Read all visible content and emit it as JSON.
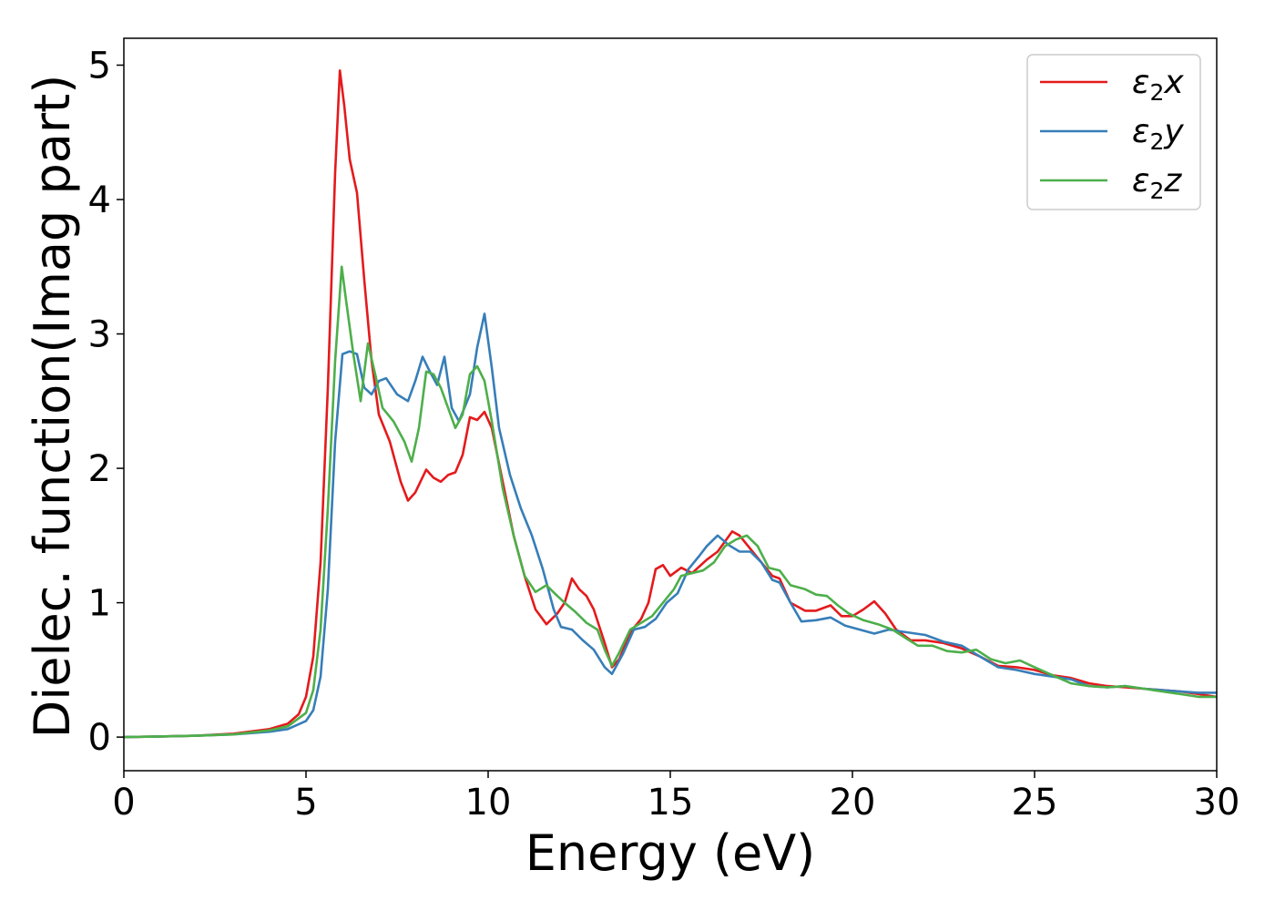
{
  "chart_data": {
    "type": "line",
    "title": "",
    "xlabel": "Energy (eV)",
    "ylabel": "Dielec. function(Imag part)",
    "xlim": [
      0,
      30
    ],
    "ylim": [
      -0.25,
      5.2
    ],
    "xticks": [
      0,
      5,
      10,
      15,
      20,
      25,
      30
    ],
    "yticks": [
      0,
      1,
      2,
      3,
      4,
      5
    ],
    "grid": false,
    "legend_position": "top-right",
    "series": [
      {
        "name": "ε₂x",
        "legend_base": "ε",
        "legend_sub": "2",
        "legend_suffix": "x",
        "color": "#e41a1c",
        "points": [
          [
            0,
            0
          ],
          [
            1,
            0.005
          ],
          [
            2,
            0.01
          ],
          [
            3,
            0.025
          ],
          [
            4,
            0.06
          ],
          [
            4.5,
            0.1
          ],
          [
            4.8,
            0.17
          ],
          [
            5.0,
            0.3
          ],
          [
            5.2,
            0.6
          ],
          [
            5.4,
            1.3
          ],
          [
            5.6,
            2.6
          ],
          [
            5.8,
            4.2
          ],
          [
            5.93,
            4.96
          ],
          [
            6.05,
            4.7
          ],
          [
            6.2,
            4.3
          ],
          [
            6.4,
            4.05
          ],
          [
            6.6,
            3.4
          ],
          [
            6.8,
            2.8
          ],
          [
            7.0,
            2.4
          ],
          [
            7.3,
            2.2
          ],
          [
            7.6,
            1.9
          ],
          [
            7.8,
            1.76
          ],
          [
            8.0,
            1.82
          ],
          [
            8.3,
            1.99
          ],
          [
            8.5,
            1.93
          ],
          [
            8.7,
            1.9
          ],
          [
            8.9,
            1.95
          ],
          [
            9.1,
            1.97
          ],
          [
            9.3,
            2.1
          ],
          [
            9.5,
            2.38
          ],
          [
            9.7,
            2.36
          ],
          [
            9.9,
            2.42
          ],
          [
            10.1,
            2.3
          ],
          [
            10.4,
            1.9
          ],
          [
            10.7,
            1.5
          ],
          [
            11.0,
            1.2
          ],
          [
            11.3,
            0.95
          ],
          [
            11.6,
            0.84
          ],
          [
            11.9,
            0.92
          ],
          [
            12.1,
            1.0
          ],
          [
            12.3,
            1.18
          ],
          [
            12.5,
            1.1
          ],
          [
            12.7,
            1.05
          ],
          [
            12.9,
            0.95
          ],
          [
            13.2,
            0.7
          ],
          [
            13.4,
            0.52
          ],
          [
            13.6,
            0.58
          ],
          [
            13.9,
            0.78
          ],
          [
            14.2,
            0.88
          ],
          [
            14.4,
            1.0
          ],
          [
            14.6,
            1.25
          ],
          [
            14.8,
            1.28
          ],
          [
            15.0,
            1.2
          ],
          [
            15.3,
            1.26
          ],
          [
            15.6,
            1.22
          ],
          [
            16.0,
            1.32
          ],
          [
            16.3,
            1.38
          ],
          [
            16.7,
            1.53
          ],
          [
            16.9,
            1.5
          ],
          [
            17.2,
            1.4
          ],
          [
            17.5,
            1.3
          ],
          [
            17.8,
            1.2
          ],
          [
            18.0,
            1.18
          ],
          [
            18.3,
            1.0
          ],
          [
            18.7,
            0.94
          ],
          [
            19.0,
            0.94
          ],
          [
            19.4,
            0.98
          ],
          [
            19.7,
            0.9
          ],
          [
            20.0,
            0.9
          ],
          [
            20.3,
            0.95
          ],
          [
            20.6,
            1.01
          ],
          [
            20.9,
            0.92
          ],
          [
            21.2,
            0.8
          ],
          [
            21.6,
            0.72
          ],
          [
            22.0,
            0.72
          ],
          [
            22.5,
            0.7
          ],
          [
            23.0,
            0.66
          ],
          [
            23.5,
            0.6
          ],
          [
            24.0,
            0.53
          ],
          [
            24.5,
            0.52
          ],
          [
            25.0,
            0.5
          ],
          [
            25.5,
            0.46
          ],
          [
            26.0,
            0.44
          ],
          [
            26.5,
            0.4
          ],
          [
            27.0,
            0.38
          ],
          [
            27.5,
            0.37
          ],
          [
            28.0,
            0.36
          ],
          [
            28.5,
            0.35
          ],
          [
            29.0,
            0.34
          ],
          [
            29.5,
            0.32
          ],
          [
            30,
            0.3
          ]
        ]
      },
      {
        "name": "ε₂y",
        "legend_base": "ε",
        "legend_sub": "2",
        "legend_suffix": "y",
        "color": "#377eb8",
        "points": [
          [
            0,
            0
          ],
          [
            1,
            0.005
          ],
          [
            2,
            0.01
          ],
          [
            3,
            0.02
          ],
          [
            4,
            0.04
          ],
          [
            4.5,
            0.06
          ],
          [
            5.0,
            0.12
          ],
          [
            5.2,
            0.2
          ],
          [
            5.4,
            0.45
          ],
          [
            5.6,
            1.1
          ],
          [
            5.8,
            2.2
          ],
          [
            6.0,
            2.85
          ],
          [
            6.2,
            2.87
          ],
          [
            6.4,
            2.85
          ],
          [
            6.6,
            2.6
          ],
          [
            6.8,
            2.55
          ],
          [
            7.0,
            2.65
          ],
          [
            7.2,
            2.67
          ],
          [
            7.5,
            2.55
          ],
          [
            7.8,
            2.5
          ],
          [
            8.0,
            2.65
          ],
          [
            8.2,
            2.83
          ],
          [
            8.4,
            2.72
          ],
          [
            8.6,
            2.62
          ],
          [
            8.8,
            2.83
          ],
          [
            9.0,
            2.45
          ],
          [
            9.2,
            2.35
          ],
          [
            9.5,
            2.55
          ],
          [
            9.7,
            2.9
          ],
          [
            9.9,
            3.15
          ],
          [
            10.1,
            2.75
          ],
          [
            10.3,
            2.3
          ],
          [
            10.6,
            1.95
          ],
          [
            10.9,
            1.7
          ],
          [
            11.2,
            1.5
          ],
          [
            11.5,
            1.25
          ],
          [
            11.8,
            0.95
          ],
          [
            12.0,
            0.82
          ],
          [
            12.3,
            0.8
          ],
          [
            12.6,
            0.72
          ],
          [
            12.9,
            0.65
          ],
          [
            13.2,
            0.52
          ],
          [
            13.4,
            0.47
          ],
          [
            13.7,
            0.62
          ],
          [
            14.0,
            0.8
          ],
          [
            14.3,
            0.82
          ],
          [
            14.6,
            0.88
          ],
          [
            14.9,
            1.0
          ],
          [
            15.2,
            1.07
          ],
          [
            15.5,
            1.25
          ],
          [
            15.8,
            1.35
          ],
          [
            16.0,
            1.42
          ],
          [
            16.3,
            1.5
          ],
          [
            16.6,
            1.43
          ],
          [
            16.9,
            1.38
          ],
          [
            17.2,
            1.38
          ],
          [
            17.5,
            1.3
          ],
          [
            17.8,
            1.17
          ],
          [
            18.0,
            1.15
          ],
          [
            18.3,
            1.0
          ],
          [
            18.6,
            0.86
          ],
          [
            19.0,
            0.87
          ],
          [
            19.4,
            0.89
          ],
          [
            19.8,
            0.83
          ],
          [
            20.2,
            0.8
          ],
          [
            20.6,
            0.77
          ],
          [
            21.0,
            0.8
          ],
          [
            21.5,
            0.78
          ],
          [
            22.0,
            0.76
          ],
          [
            22.5,
            0.71
          ],
          [
            23.0,
            0.68
          ],
          [
            23.5,
            0.6
          ],
          [
            24.0,
            0.52
          ],
          [
            24.5,
            0.5
          ],
          [
            25.0,
            0.47
          ],
          [
            25.5,
            0.45
          ],
          [
            26.0,
            0.43
          ],
          [
            26.5,
            0.38
          ],
          [
            27.0,
            0.37
          ],
          [
            27.5,
            0.38
          ],
          [
            28.0,
            0.36
          ],
          [
            28.5,
            0.35
          ],
          [
            29.0,
            0.34
          ],
          [
            29.5,
            0.33
          ],
          [
            30,
            0.33
          ]
        ]
      },
      {
        "name": "ε₂z",
        "legend_base": "ε",
        "legend_sub": "2",
        "legend_suffix": "z",
        "color": "#4daf4a",
        "points": [
          [
            0,
            0
          ],
          [
            1,
            0.005
          ],
          [
            2,
            0.01
          ],
          [
            3,
            0.02
          ],
          [
            4,
            0.05
          ],
          [
            4.5,
            0.08
          ],
          [
            5.0,
            0.18
          ],
          [
            5.2,
            0.35
          ],
          [
            5.4,
            0.8
          ],
          [
            5.6,
            1.7
          ],
          [
            5.8,
            2.8
          ],
          [
            5.98,
            3.5
          ],
          [
            6.1,
            3.25
          ],
          [
            6.3,
            2.85
          ],
          [
            6.5,
            2.5
          ],
          [
            6.7,
            2.93
          ],
          [
            6.9,
            2.7
          ],
          [
            7.1,
            2.45
          ],
          [
            7.4,
            2.35
          ],
          [
            7.7,
            2.2
          ],
          [
            7.9,
            2.05
          ],
          [
            8.1,
            2.3
          ],
          [
            8.3,
            2.72
          ],
          [
            8.5,
            2.7
          ],
          [
            8.7,
            2.6
          ],
          [
            8.9,
            2.45
          ],
          [
            9.1,
            2.3
          ],
          [
            9.3,
            2.4
          ],
          [
            9.5,
            2.7
          ],
          [
            9.7,
            2.76
          ],
          [
            9.9,
            2.65
          ],
          [
            10.1,
            2.35
          ],
          [
            10.4,
            1.85
          ],
          [
            10.7,
            1.5
          ],
          [
            11.0,
            1.2
          ],
          [
            11.3,
            1.08
          ],
          [
            11.6,
            1.13
          ],
          [
            11.9,
            1.05
          ],
          [
            12.1,
            1.0
          ],
          [
            12.4,
            0.93
          ],
          [
            12.7,
            0.85
          ],
          [
            13.0,
            0.8
          ],
          [
            13.2,
            0.65
          ],
          [
            13.4,
            0.53
          ],
          [
            13.6,
            0.63
          ],
          [
            13.9,
            0.8
          ],
          [
            14.2,
            0.85
          ],
          [
            14.5,
            0.9
          ],
          [
            14.8,
            1.0
          ],
          [
            15.1,
            1.1
          ],
          [
            15.3,
            1.2
          ],
          [
            15.6,
            1.22
          ],
          [
            15.9,
            1.24
          ],
          [
            16.2,
            1.3
          ],
          [
            16.5,
            1.42
          ],
          [
            16.8,
            1.47
          ],
          [
            17.1,
            1.5
          ],
          [
            17.4,
            1.42
          ],
          [
            17.7,
            1.26
          ],
          [
            18.0,
            1.24
          ],
          [
            18.3,
            1.13
          ],
          [
            18.7,
            1.1
          ],
          [
            19.0,
            1.06
          ],
          [
            19.3,
            1.05
          ],
          [
            19.6,
            0.98
          ],
          [
            19.9,
            0.92
          ],
          [
            20.3,
            0.87
          ],
          [
            20.7,
            0.84
          ],
          [
            21.1,
            0.8
          ],
          [
            21.5,
            0.73
          ],
          [
            21.8,
            0.68
          ],
          [
            22.2,
            0.68
          ],
          [
            22.6,
            0.64
          ],
          [
            23.0,
            0.63
          ],
          [
            23.4,
            0.65
          ],
          [
            23.8,
            0.58
          ],
          [
            24.2,
            0.55
          ],
          [
            24.6,
            0.57
          ],
          [
            25.0,
            0.52
          ],
          [
            25.5,
            0.46
          ],
          [
            26.0,
            0.4
          ],
          [
            26.5,
            0.38
          ],
          [
            27.0,
            0.37
          ],
          [
            27.5,
            0.38
          ],
          [
            28.0,
            0.36
          ],
          [
            28.5,
            0.34
          ],
          [
            29.0,
            0.32
          ],
          [
            29.5,
            0.3
          ],
          [
            30,
            0.3
          ]
        ]
      }
    ]
  }
}
